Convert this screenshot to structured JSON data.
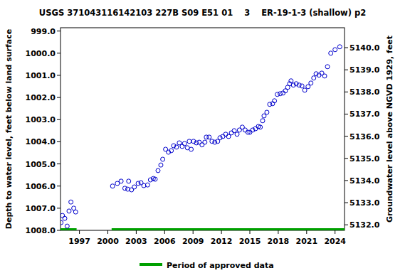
{
  "chart_data": {
    "type": "scatter",
    "title": "USGS 371043116142103 227B S09 E51 01    3    ER-19-1-3 (shallow) p2",
    "ylabel": "Depth to water level, feet below land surface",
    "y2label": "Groundwater level above NGVD 1929, feet",
    "marker": "circle-open",
    "color": "#0000cc",
    "x": [
      1995.05,
      1995.2,
      1995.45,
      1995.7,
      1995.9,
      1996.1,
      1996.4,
      1996.6,
      2000.5,
      2001.0,
      2001.4,
      2001.8,
      2002.1,
      2002.2,
      2002.5,
      2002.8,
      2003.2,
      2003.5,
      2003.8,
      2004.2,
      2004.5,
      2004.8,
      2005.0,
      2005.3,
      2005.6,
      2005.8,
      2006.1,
      2006.4,
      2006.7,
      2006.95,
      2007.25,
      2007.55,
      2007.85,
      2008.1,
      2008.4,
      2008.6,
      2008.8,
      2009.05,
      2009.35,
      2009.65,
      2009.95,
      2010.25,
      2010.4,
      2010.7,
      2011.0,
      2011.3,
      2011.6,
      2011.85,
      2012.15,
      2012.45,
      2012.75,
      2013.05,
      2013.35,
      2013.65,
      2013.9,
      2014.2,
      2014.5,
      2014.8,
      2015.0,
      2015.3,
      2015.6,
      2015.9,
      2016.1,
      2016.35,
      2016.5,
      2016.8,
      2017.1,
      2017.4,
      2017.6,
      2017.9,
      2018.2,
      2018.5,
      2018.75,
      2019.0,
      2019.2,
      2019.35,
      2019.6,
      2019.9,
      2020.2,
      2020.5,
      2020.8,
      2021.15,
      2021.45,
      2021.75,
      2022.0,
      2022.3,
      2022.6,
      2022.9,
      2023.2,
      2023.55,
      2024.0,
      2024.5
    ],
    "values": [
      1007.65,
      1007.33,
      1007.46,
      1007.81,
      1007.13,
      1006.72,
      1007.0,
      1007.17,
      1006.0,
      1005.88,
      1005.78,
      1006.1,
      1006.14,
      1005.78,
      1006.17,
      1006.04,
      1005.88,
      1005.85,
      1005.98,
      1005.95,
      1005.72,
      1005.66,
      1005.69,
      1005.3,
      1005.05,
      1004.79,
      1004.34,
      1004.47,
      1004.4,
      1004.18,
      1004.24,
      1004.05,
      1004.21,
      1004.08,
      1004.27,
      1003.98,
      1004.34,
      1003.98,
      1004.05,
      1004.02,
      1004.14,
      1004.02,
      1003.79,
      1003.79,
      1003.98,
      1004.02,
      1003.98,
      1003.82,
      1003.76,
      1003.66,
      1003.76,
      1003.6,
      1003.5,
      1003.66,
      1003.47,
      1003.34,
      1003.47,
      1003.57,
      1003.57,
      1003.47,
      1003.41,
      1003.31,
      1003.34,
      1003.05,
      1002.83,
      1002.67,
      1002.31,
      1002.28,
      1002.15,
      1001.86,
      1001.83,
      1001.8,
      1001.7,
      1001.54,
      1001.38,
      1001.25,
      1001.44,
      1001.38,
      1001.44,
      1001.48,
      1001.67,
      1001.51,
      1001.35,
      1001.12,
      1000.93,
      1000.99,
      1000.9,
      1001.03,
      1000.61,
      1000.0,
      999.84,
      999.71
    ],
    "xlim": [
      1995.0,
      2025.0
    ],
    "xticks": [
      1997,
      2000,
      2003,
      2006,
      2009,
      2012,
      2015,
      2018,
      2021,
      2024
    ],
    "ylim": [
      1008.0,
      998.85
    ],
    "yticks": [
      {
        "value": 999,
        "label": "999.0"
      },
      {
        "value": 1000,
        "label": "1000.0"
      },
      {
        "value": 1001,
        "label": "1001.0"
      },
      {
        "value": 1002,
        "label": "1002.0"
      },
      {
        "value": 1003,
        "label": "1003.0"
      },
      {
        "value": 1004,
        "label": "1004.0"
      },
      {
        "value": 1005,
        "label": "1005.0"
      },
      {
        "value": 1006,
        "label": "1006.0"
      },
      {
        "value": 1007,
        "label": "1007.0"
      },
      {
        "value": 1008,
        "label": "1008.0"
      }
    ],
    "y2lim": [
      5131.75,
      5140.9
    ],
    "y2ticks": [
      {
        "value": 5132,
        "label": "5132.0"
      },
      {
        "value": 5133,
        "label": "5133.0"
      },
      {
        "value": 5134,
        "label": "5134.0"
      },
      {
        "value": 5135,
        "label": "5135.0"
      },
      {
        "value": 5136,
        "label": "5136.0"
      },
      {
        "value": 5137,
        "label": "5137.0"
      },
      {
        "value": 5138,
        "label": "5138.0"
      },
      {
        "value": 5139,
        "label": "5139.0"
      },
      {
        "value": 5140,
        "label": "5140.0"
      }
    ],
    "approved_periods": [
      [
        1995.0,
        1996.7
      ],
      [
        2000.4,
        2025.0
      ]
    ],
    "approved_label": "Period of approved data",
    "approved_color": "#00a000",
    "legend": "bottom",
    "grid": false
  }
}
